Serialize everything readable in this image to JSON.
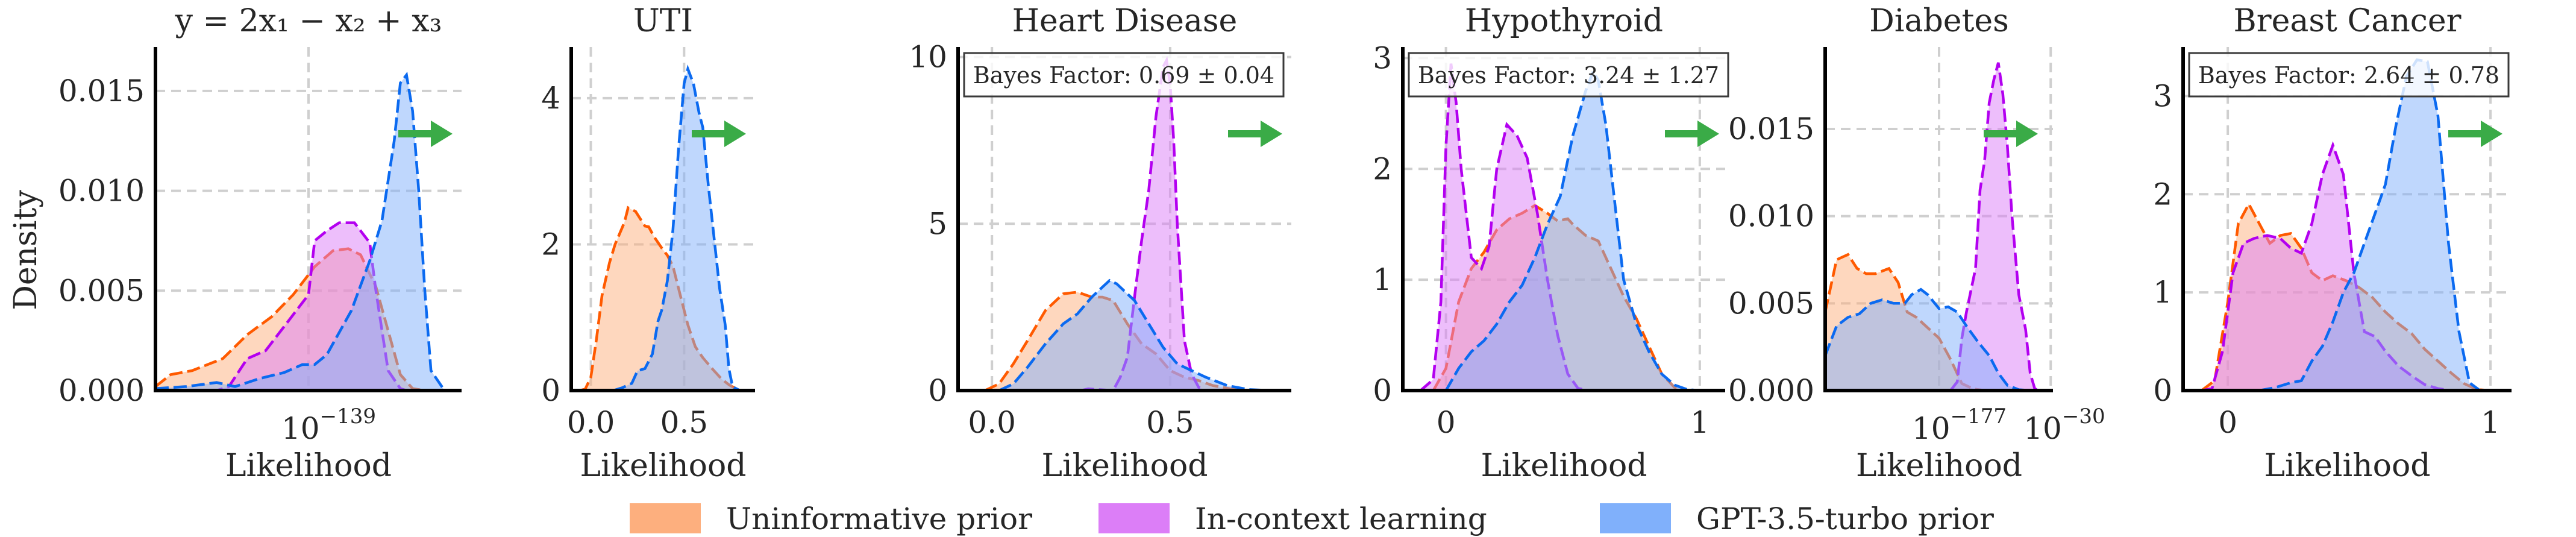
{
  "figure": {
    "ylabel": "Density",
    "arrow_color": "#3aab47",
    "legend": [
      {
        "label": "Uninformative prior",
        "color": "#fdaf7e",
        "line": "#ff5a00"
      },
      {
        "label": "In-context learning",
        "color": "#dc7ef7",
        "line": "#b300f0"
      },
      {
        "label": "GPT-3.5-turbo prior",
        "color": "#80b0fb",
        "line": "#0b6af0"
      }
    ]
  },
  "chart_data": [
    {
      "type": "area",
      "title": "y = 2x₁ − x₂ + x₃",
      "xlabel": "Likelihood",
      "ylabel": "Density",
      "xlim": [
        0,
        1
      ],
      "ylim": [
        0,
        0.0172
      ],
      "yticks": [
        {
          "v": 0.0,
          "label": "0.000"
        },
        {
          "v": 0.005,
          "label": "0.005"
        },
        {
          "v": 0.01,
          "label": "0.010"
        },
        {
          "v": 0.015,
          "label": "0.015"
        }
      ],
      "xticks": [
        {
          "v": 0.5,
          "base": "10",
          "exp": "−139"
        }
      ],
      "grid": true,
      "bayes_factor": null,
      "series": [
        {
          "name": "Uninformative prior",
          "x": [
            0,
            0.05,
            0.12,
            0.22,
            0.3,
            0.38,
            0.45,
            0.52,
            0.58,
            0.63,
            0.67,
            0.72,
            0.76,
            0.8,
            0.84,
            0.88,
            0.9
          ],
          "y": [
            0.0002,
            0.0008,
            0.001,
            0.0016,
            0.0028,
            0.0037,
            0.0048,
            0.0062,
            0.007,
            0.0071,
            0.0068,
            0.0052,
            0.003,
            0.0008,
            0.0001,
            0,
            0
          ]
        },
        {
          "name": "In-context learning",
          "x": [
            0,
            0.2,
            0.24,
            0.3,
            0.36,
            0.42,
            0.47,
            0.5,
            0.52,
            0.56,
            0.6,
            0.65,
            0.7,
            0.72,
            0.76,
            0.8,
            0.82
          ],
          "y": [
            0,
            0,
            0.0002,
            0.0016,
            0.002,
            0.0032,
            0.0042,
            0.0048,
            0.0075,
            0.008,
            0.0084,
            0.0084,
            0.0074,
            0.005,
            0.001,
            0.0001,
            0
          ]
        },
        {
          "name": "GPT-3.5-turbo prior",
          "x": [
            0,
            0.1,
            0.2,
            0.26,
            0.34,
            0.42,
            0.48,
            0.52,
            0.56,
            0.64,
            0.7,
            0.74,
            0.78,
            0.8,
            0.82,
            0.84,
            0.86,
            0.88,
            0.9,
            0.94,
            0.95
          ],
          "y": [
            0.0001,
            0.0002,
            0.0004,
            0.0002,
            0.0006,
            0.0009,
            0.0013,
            0.0013,
            0.0018,
            0.004,
            0.0065,
            0.0085,
            0.0125,
            0.0154,
            0.0158,
            0.014,
            0.01,
            0.005,
            0.001,
            0.0001,
            0
          ]
        }
      ]
    },
    {
      "type": "area",
      "title": "UTI",
      "xlabel": "Likelihood",
      "ylabel": "",
      "xlim": [
        -0.105,
        0.88
      ],
      "ylim": [
        0,
        4.7
      ],
      "yticks": [
        {
          "v": 0,
          "label": "0"
        },
        {
          "v": 2,
          "label": "2"
        },
        {
          "v": 4,
          "label": "4"
        }
      ],
      "xticks": [
        {
          "v": 0.0,
          "label": "0.0"
        },
        {
          "v": 0.5,
          "label": "0.5"
        }
      ],
      "grid": true,
      "bayes_factor": null,
      "series": [
        {
          "name": "Uninformative prior",
          "x": [
            -0.06,
            -0.03,
            0,
            0.03,
            0.06,
            0.1,
            0.13,
            0.18,
            0.2,
            0.24,
            0.29,
            0.31,
            0.34,
            0.38,
            0.41,
            0.44,
            0.47,
            0.52,
            0.56,
            0.6,
            0.65,
            0.7,
            0.74,
            0.76,
            0.8
          ],
          "y": [
            0,
            0.02,
            0.18,
            0.7,
            1.3,
            1.75,
            2.0,
            2.3,
            2.5,
            2.45,
            2.25,
            2.24,
            2.1,
            1.95,
            1.85,
            1.7,
            1.4,
            0.9,
            0.6,
            0.45,
            0.3,
            0.16,
            0.08,
            0.05,
            0
          ]
        },
        {
          "name": "GPT-3.5-turbo prior",
          "x": [
            0.12,
            0.17,
            0.22,
            0.25,
            0.29,
            0.33,
            0.36,
            0.38,
            0.41,
            0.44,
            0.47,
            0.5,
            0.52,
            0.55,
            0.58,
            0.6,
            0.63,
            0.66,
            0.69,
            0.72,
            0.74,
            0.76,
            0.8
          ],
          "y": [
            0,
            0.04,
            0.1,
            0.27,
            0.3,
            0.5,
            0.95,
            1.1,
            1.5,
            2.2,
            3.3,
            4.2,
            4.4,
            4.2,
            3.8,
            3.6,
            2.8,
            2.1,
            1.4,
            0.9,
            0.3,
            0.05,
            0
          ]
        }
      ]
    },
    {
      "type": "area",
      "title": "Heart Disease",
      "xlabel": "Likelihood",
      "ylabel": "",
      "xlim": [
        -0.095,
        0.84
      ],
      "ylim": [
        0,
        10.3
      ],
      "yticks": [
        {
          "v": 0,
          "label": "0"
        },
        {
          "v": 5,
          "label": "5"
        },
        {
          "v": 10,
          "label": "10"
        }
      ],
      "xticks": [
        {
          "v": 0.0,
          "label": "0.0"
        },
        {
          "v": 0.5,
          "label": "0.5"
        }
      ],
      "grid": true,
      "bayes_factor": "Bayes Factor: 0.69 ± 0.04",
      "series": [
        {
          "name": "Uninformative prior",
          "x": [
            -0.02,
            0.02,
            0.06,
            0.1,
            0.15,
            0.2,
            0.24,
            0.28,
            0.31,
            0.34,
            0.38,
            0.42,
            0.46,
            0.5,
            0.54,
            0.58,
            0.62,
            0.68,
            0.72
          ],
          "y": [
            0,
            0.2,
            0.8,
            1.5,
            2.4,
            2.9,
            2.95,
            2.8,
            2.8,
            2.7,
            2.0,
            1.4,
            1.1,
            0.6,
            0.4,
            0.3,
            0.15,
            0.03,
            0
          ]
        },
        {
          "name": "In-context learning",
          "x": [
            0.25,
            0.27,
            0.34,
            0.36,
            0.38,
            0.4,
            0.42,
            0.44,
            0.46,
            0.48,
            0.49,
            0.5,
            0.51,
            0.52,
            0.54,
            0.56,
            0.58,
            0.6
          ],
          "y": [
            0,
            0.05,
            0,
            0.4,
            1.0,
            2.8,
            4.5,
            6.0,
            8.2,
            9.7,
            9.9,
            9.2,
            7.5,
            5.0,
            1.5,
            0.5,
            0.1,
            0
          ]
        },
        {
          "name": "GPT-3.5-turbo prior",
          "x": [
            0.02,
            0.06,
            0.1,
            0.15,
            0.2,
            0.24,
            0.28,
            0.31,
            0.33,
            0.35,
            0.37,
            0.4,
            0.44,
            0.48,
            0.52,
            0.56,
            0.6,
            0.66,
            0.72,
            0.78
          ],
          "y": [
            0,
            0.2,
            0.7,
            1.4,
            2.0,
            2.3,
            2.8,
            3.1,
            3.3,
            3.2,
            3.0,
            2.7,
            2.0,
            1.3,
            0.8,
            0.6,
            0.4,
            0.15,
            0.03,
            0
          ]
        }
      ]
    },
    {
      "type": "area",
      "title": "Hypothyroid",
      "xlabel": "Likelihood",
      "ylabel": "",
      "xlim": [
        -0.17,
        1.1
      ],
      "ylim": [
        0,
        3.1
      ],
      "yticks": [
        {
          "v": 0,
          "label": "0"
        },
        {
          "v": 1,
          "label": "1"
        },
        {
          "v": 2,
          "label": "2"
        },
        {
          "v": 3,
          "label": "3"
        }
      ],
      "xticks": [
        {
          "v": 0,
          "label": "0"
        },
        {
          "v": 1,
          "label": "1"
        }
      ],
      "grid": true,
      "bayes_factor": "Bayes Factor: 3.24 ± 1.27",
      "series": [
        {
          "name": "Uninformative prior",
          "x": [
            -0.05,
            0,
            0.05,
            0.1,
            0.15,
            0.2,
            0.25,
            0.3,
            0.35,
            0.4,
            0.44,
            0.48,
            0.5,
            0.55,
            0.6,
            0.65,
            0.7,
            0.75,
            0.8,
            0.85,
            0.9,
            0.95
          ],
          "y": [
            0,
            0.2,
            0.8,
            1.1,
            1.25,
            1.45,
            1.55,
            1.6,
            1.67,
            1.6,
            1.53,
            1.55,
            1.5,
            1.4,
            1.35,
            1.1,
            0.85,
            0.65,
            0.4,
            0.15,
            0.03,
            0
          ]
        },
        {
          "name": "In-context learning",
          "x": [
            -0.1,
            -0.05,
            -0.02,
            0,
            0.02,
            0.04,
            0.06,
            0.1,
            0.14,
            0.17,
            0.2,
            0.24,
            0.28,
            0.32,
            0.36,
            0.4,
            0.44,
            0.48,
            0.52,
            0.56,
            0.6
          ],
          "y": [
            0,
            0.1,
            0.8,
            2.2,
            2.95,
            2.6,
            2.0,
            1.2,
            1.1,
            1.3,
            2.0,
            2.4,
            2.3,
            2.1,
            1.6,
            1.0,
            0.5,
            0.15,
            0.02,
            0,
            0
          ]
        },
        {
          "name": "GPT-3.5-turbo prior",
          "x": [
            0,
            0.05,
            0.1,
            0.15,
            0.2,
            0.25,
            0.3,
            0.35,
            0.4,
            0.45,
            0.5,
            0.55,
            0.58,
            0.6,
            0.63,
            0.66,
            0.7,
            0.75,
            0.8,
            0.85,
            0.9,
            0.95,
            1.0
          ],
          "y": [
            0,
            0.2,
            0.35,
            0.45,
            0.6,
            0.8,
            0.95,
            1.2,
            1.5,
            1.75,
            2.3,
            2.7,
            2.88,
            2.8,
            2.4,
            1.8,
            1.0,
            0.6,
            0.35,
            0.15,
            0.05,
            0.01,
            0
          ]
        }
      ]
    },
    {
      "type": "area",
      "title": "Diabetes",
      "xlabel": "Likelihood",
      "ylabel": "",
      "xlim": [
        0,
        1
      ],
      "ylim": [
        0,
        0.0197
      ],
      "yticks": [
        {
          "v": 0.0,
          "label": "0.000"
        },
        {
          "v": 0.005,
          "label": "0.005"
        },
        {
          "v": 0.01,
          "label": "0.010"
        },
        {
          "v": 0.015,
          "label": "0.015"
        }
      ],
      "xticks": [
        {
          "v": 0.5,
          "base": "10",
          "exp": "−177"
        },
        {
          "v": 0.99,
          "base": "10",
          "exp": "−30"
        }
      ],
      "grid": true,
      "bayes_factor": null,
      "series": [
        {
          "name": "Uninformative prior",
          "x": [
            0,
            0.05,
            0.1,
            0.14,
            0.18,
            0.22,
            0.28,
            0.32,
            0.36,
            0.4,
            0.45,
            0.5,
            0.55,
            0.6,
            0.65,
            0.7
          ],
          "y": [
            0.0045,
            0.0075,
            0.0078,
            0.007,
            0.0067,
            0.0067,
            0.007,
            0.0062,
            0.0045,
            0.0042,
            0.0036,
            0.003,
            0.0018,
            0.0004,
            0.0001,
            0
          ]
        },
        {
          "name": "In-context learning",
          "x": [
            0.55,
            0.58,
            0.6,
            0.62,
            0.66,
            0.68,
            0.7,
            0.72,
            0.74,
            0.76,
            0.78,
            0.8,
            0.82,
            0.85,
            0.88,
            0.9,
            0.92,
            0.94
          ],
          "y": [
            0,
            0.0005,
            0.003,
            0.0045,
            0.007,
            0.0115,
            0.0132,
            0.0165,
            0.0178,
            0.0188,
            0.017,
            0.014,
            0.01,
            0.0055,
            0.0035,
            0.001,
            0.0001,
            0
          ]
        },
        {
          "name": "GPT-3.5-turbo prior",
          "x": [
            0,
            0.05,
            0.1,
            0.15,
            0.2,
            0.25,
            0.3,
            0.35,
            0.38,
            0.42,
            0.45,
            0.5,
            0.54,
            0.58,
            0.62,
            0.67,
            0.72,
            0.76,
            0.8,
            0.85,
            0.9
          ],
          "y": [
            0.002,
            0.0037,
            0.0042,
            0.0044,
            0.005,
            0.0052,
            0.005,
            0.005,
            0.0055,
            0.0058,
            0.0055,
            0.0047,
            0.0048,
            0.0045,
            0.0037,
            0.0028,
            0.002,
            0.001,
            0.0003,
            5e-05,
            0
          ]
        }
      ]
    },
    {
      "type": "area",
      "title": "Breast Cancer",
      "xlabel": "Likelihood",
      "ylabel": "",
      "xlim": [
        -0.17,
        1.08
      ],
      "ylim": [
        0,
        3.5
      ],
      "yticks": [
        {
          "v": 0,
          "label": "0"
        },
        {
          "v": 1,
          "label": "1"
        },
        {
          "v": 2,
          "label": "2"
        },
        {
          "v": 3,
          "label": "3"
        }
      ],
      "xticks": [
        {
          "v": 0,
          "label": "0"
        },
        {
          "v": 1,
          "label": "1"
        }
      ],
      "grid": true,
      "bayes_factor": "Bayes Factor: 2.64 ± 0.78",
      "series": [
        {
          "name": "Uninformative prior",
          "x": [
            -0.1,
            -0.05,
            0,
            0.04,
            0.08,
            0.12,
            0.16,
            0.2,
            0.24,
            0.28,
            0.32,
            0.36,
            0.4,
            0.45,
            0.5,
            0.55,
            0.6,
            0.65,
            0.7,
            0.75,
            0.8,
            0.85,
            0.9,
            0.95,
            1.0
          ],
          "y": [
            0,
            0.1,
            0.9,
            1.7,
            1.9,
            1.7,
            1.5,
            1.58,
            1.6,
            1.45,
            1.2,
            1.12,
            1.17,
            1.12,
            1.05,
            0.95,
            0.8,
            0.68,
            0.58,
            0.42,
            0.3,
            0.18,
            0.07,
            0.01,
            0
          ]
        },
        {
          "name": "In-context learning",
          "x": [
            -0.1,
            -0.06,
            -0.02,
            0.02,
            0.06,
            0.1,
            0.15,
            0.2,
            0.24,
            0.28,
            0.32,
            0.36,
            0.4,
            0.44,
            0.48,
            0.52,
            0.56,
            0.6,
            0.65,
            0.7,
            0.75,
            0.8,
            0.85,
            0.9
          ],
          "y": [
            0,
            0.02,
            0.4,
            1.2,
            1.5,
            1.55,
            1.58,
            1.55,
            1.45,
            1.4,
            1.7,
            2.2,
            2.5,
            2.2,
            1.2,
            0.6,
            0.55,
            0.4,
            0.25,
            0.15,
            0.06,
            0.02,
            0,
            0
          ]
        },
        {
          "name": "GPT-3.5-turbo prior",
          "x": [
            0.12,
            0.18,
            0.24,
            0.28,
            0.32,
            0.36,
            0.4,
            0.44,
            0.48,
            0.52,
            0.56,
            0.6,
            0.64,
            0.68,
            0.72,
            0.76,
            0.8,
            0.84,
            0.88,
            0.92,
            0.96
          ],
          "y": [
            0,
            0.03,
            0.08,
            0.1,
            0.3,
            0.45,
            0.7,
            1.0,
            1.2,
            1.5,
            1.8,
            2.1,
            2.7,
            3.2,
            3.37,
            3.35,
            2.8,
            1.5,
            0.6,
            0.08,
            0
          ]
        }
      ]
    }
  ]
}
